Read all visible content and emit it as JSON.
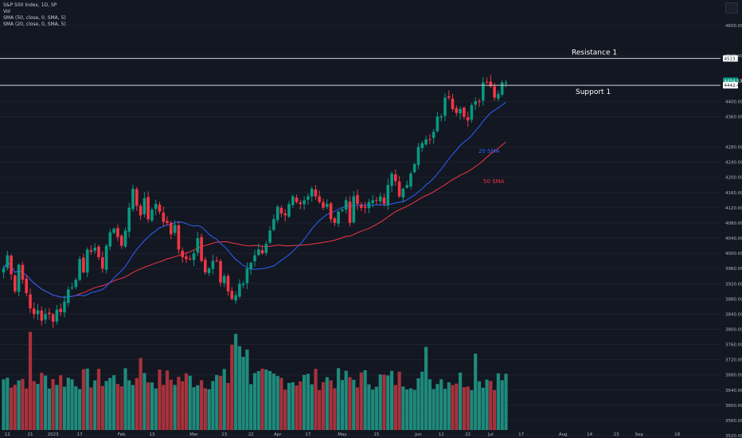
{
  "header": {
    "symbol_line": "S&P 500 Index, 1D, SP",
    "vol_label": "Vol",
    "indicator_1": "SMA (50, close, 0, SMA, 5)",
    "indicator_2": "SMA (20, close, 0, SMA, 5)"
  },
  "price_axis": {
    "ticks": [
      {
        "value": 4600,
        "label": "4600.00"
      },
      {
        "value": 4520,
        "label": "4520.00"
      },
      {
        "value": 4400,
        "label": "4400.00"
      },
      {
        "value": 4360,
        "label": "4360.00"
      },
      {
        "value": 4280,
        "label": "4280.00"
      },
      {
        "value": 4240,
        "label": "4240.00"
      },
      {
        "value": 4200,
        "label": "4200.00"
      },
      {
        "value": 4160,
        "label": "4160.00"
      },
      {
        "value": 4120,
        "label": "4120.00"
      },
      {
        "value": 4080,
        "label": "4080.00"
      },
      {
        "value": 4040,
        "label": "4040.00"
      },
      {
        "value": 4000,
        "label": "4000.00"
      },
      {
        "value": 3960,
        "label": "3960.00"
      },
      {
        "value": 3920,
        "label": "3920.00"
      },
      {
        "value": 3880,
        "label": "3880.00"
      },
      {
        "value": 3840,
        "label": "3840.00"
      },
      {
        "value": 3800,
        "label": "3800.00"
      },
      {
        "value": 3760,
        "label": "3760.00"
      },
      {
        "value": 3720,
        "label": "3720.00"
      },
      {
        "value": 3680,
        "label": "3680.00"
      },
      {
        "value": 3640,
        "label": "3640.00"
      },
      {
        "value": 3600,
        "label": "3600.00"
      },
      {
        "value": 3560,
        "label": "3560.00"
      },
      {
        "value": 3520,
        "label": "3520.00"
      }
    ],
    "markers": [
      {
        "value": 4513.14,
        "label": "4513.14",
        "bg": "#ffffff",
        "fg": "#131722"
      },
      {
        "value": 4454.53,
        "label": "4454.53",
        "bg": "#089981",
        "fg": "#ffffff"
      },
      {
        "value": 4442.48,
        "label": "4442.48",
        "bg": "#ffffff",
        "fg": "#131722"
      }
    ]
  },
  "time_axis": {
    "labels": [
      {
        "label": "12",
        "i": 1
      },
      {
        "label": "21",
        "i": 7
      },
      {
        "label": "2023",
        "i": 13
      },
      {
        "label": "17",
        "i": 20
      },
      {
        "label": "Feb",
        "i": 31
      },
      {
        "label": "13",
        "i": 39
      },
      {
        "label": "Mar",
        "i": 50
      },
      {
        "label": "13",
        "i": 58
      },
      {
        "label": "22",
        "i": 65
      },
      {
        "label": "Apr",
        "i": 72
      },
      {
        "label": "17",
        "i": 80
      },
      {
        "label": "May",
        "i": 89
      },
      {
        "label": "15",
        "i": 98
      },
      {
        "label": "Jun",
        "i": 109
      },
      {
        "label": "12",
        "i": 115
      },
      {
        "label": "22",
        "i": 122
      },
      {
        "label": "Jul",
        "i": 128
      },
      {
        "label": "17",
        "i": 136
      },
      {
        "label": "Aug",
        "i": 147
      },
      {
        "label": "14",
        "i": 154
      },
      {
        "label": "23",
        "i": 161
      },
      {
        "label": "Sep",
        "i": 167
      },
      {
        "label": "18",
        "i": 177
      }
    ]
  },
  "annotations": {
    "resistance_label": "Resistance 1",
    "resistance_value": 4513.14,
    "support_label": "Support 1",
    "support_value": 4442.48,
    "sma20_label": "20 SMA",
    "sma50_label": "50 SMA"
  },
  "colors": {
    "background": "#131722",
    "up": "#089981",
    "down": "#f23645",
    "vol_up": "#1f8a7c",
    "vol_down": "#a8323c",
    "sma20": "#2962ff",
    "sma50": "#f23645",
    "axis_text": "#b2b5be",
    "grid": "#1e222d"
  },
  "chart_data": {
    "type": "candlestick",
    "symbol": "S&P 500 Index",
    "interval": "1D",
    "closes": [
      3960,
      3995,
      3945,
      3900,
      3970,
      3930,
      3895,
      3855,
      3840,
      3850,
      3823,
      3840,
      3840,
      3820,
      3852,
      3845,
      3873,
      3905,
      3910,
      3930,
      3985,
      3950,
      4010,
      4004,
      4015,
      3990,
      3960,
      4020,
      4055,
      4065,
      4043,
      4020,
      4060,
      4120,
      4170,
      4125,
      4100,
      4145,
      4090,
      4115,
      4130,
      4110,
      4083,
      4080,
      4050,
      4075,
      4010,
      3990,
      3985,
      3985,
      4000,
      4040,
      3980,
      3950,
      3960,
      3980,
      3980,
      3923,
      3940,
      3900,
      3880,
      3890,
      3920,
      3920,
      3960,
      3975,
      3995,
      4010,
      4000,
      4025,
      4060,
      4090,
      4123,
      4105,
      4100,
      4130,
      4150,
      4135,
      4130,
      4140,
      4150,
      4170,
      4150,
      4135,
      4120,
      4130,
      4090,
      4080,
      4110,
      4115,
      4140,
      4080,
      4150,
      4130,
      4120,
      4120,
      4135,
      4140,
      4140,
      4150,
      4130,
      4180,
      4210,
      4190,
      4150,
      4170,
      4180,
      4210,
      4235,
      4280,
      4290,
      4300,
      4300,
      4320,
      4360,
      4360,
      4410,
      4410,
      4380,
      4370,
      4380,
      4360,
      4350,
      4390,
      4400,
      4400,
      4450,
      4450,
      4440,
      4410,
      4420,
      4450,
      4450
    ],
    "sma20_label": "20 SMA",
    "sma50_label": "50 SMA",
    "resistance": 4513.14,
    "support": 4442.48,
    "last_price": 4454.53
  }
}
